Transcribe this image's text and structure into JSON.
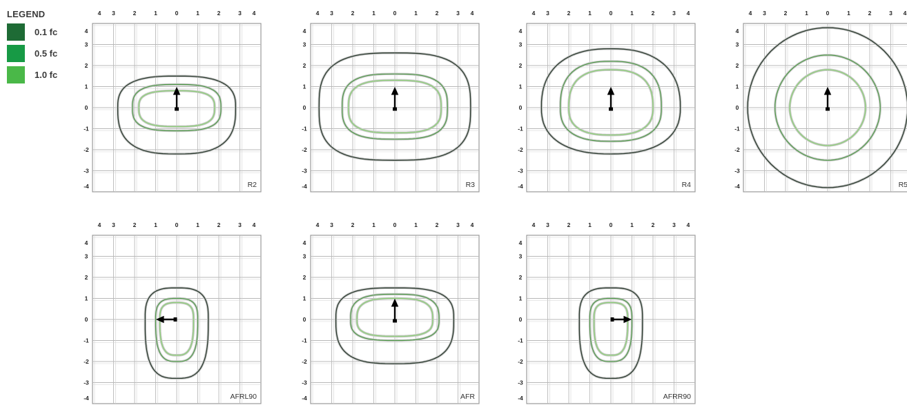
{
  "legend": {
    "title": "LEGEND",
    "items": [
      {
        "label": "0.1 fc",
        "color": "#1e6b35"
      },
      {
        "label": "0.5 fc",
        "color": "#179a45"
      },
      {
        "label": "1.0 fc",
        "color": "#4ab848"
      }
    ]
  },
  "axis_ticks": {
    "x": [
      "4",
      "3",
      "2",
      "1",
      "0",
      "1",
      "2",
      "3",
      "4"
    ],
    "y": [
      "4",
      "3",
      "2",
      "1",
      "0",
      "-1",
      "-2",
      "-3",
      "-4"
    ]
  },
  "contour_colors": [
    "#2a3a2e",
    "#4f9a48",
    "#8fd07a"
  ],
  "arrow_color": "#000000",
  "panels": [
    {
      "label": "R2",
      "arrow": "up",
      "contours": [
        {
          "level": "0.1 fc",
          "rx": [
            2.8,
            2.8,
            2.8,
            2.8
          ],
          "ry": [
            1.5,
            2.2,
            1.5,
            1.8
          ],
          "sq": 2.8
        },
        {
          "level": "0.5 fc",
          "rx": [
            2.1,
            2.1,
            2.1,
            2.1
          ],
          "ry": [
            1.1,
            1.1,
            1.1,
            1.3
          ],
          "sq": 3.0
        },
        {
          "level": "1.0 fc",
          "rx": [
            1.8,
            1.8,
            1.8,
            1.8
          ],
          "ry": [
            0.8,
            0.9,
            0.8,
            1.1
          ],
          "sq": 3.0
        }
      ]
    },
    {
      "label": "R3",
      "arrow": "up",
      "contours": [
        {
          "level": "0.1 fc",
          "rx": [
            3.6,
            3.6,
            3.6,
            3.6
          ],
          "ry": [
            2.6,
            2.5,
            2.6,
            2.5
          ],
          "sq": 3.0
        },
        {
          "level": "0.5 fc",
          "rx": [
            2.5,
            2.5,
            2.5,
            2.5
          ],
          "ry": [
            1.6,
            1.5,
            1.6,
            1.7
          ],
          "sq": 3.0
        },
        {
          "level": "1.0 fc",
          "rx": [
            2.2,
            2.2,
            2.2,
            2.2
          ],
          "ry": [
            1.3,
            1.2,
            1.3,
            1.4
          ],
          "sq": 3.0
        }
      ]
    },
    {
      "label": "R4",
      "arrow": "up",
      "contours": [
        {
          "level": "0.1 fc",
          "rx": [
            3.3,
            3.3,
            3.3,
            3.3
          ],
          "ry": [
            2.8,
            2.2,
            2.8,
            2.2
          ],
          "sq": 2.4
        },
        {
          "level": "0.5 fc",
          "rx": [
            2.4,
            2.4,
            2.4,
            2.4
          ],
          "ry": [
            2.2,
            1.6,
            2.2,
            1.4
          ],
          "sq": 2.6
        },
        {
          "level": "1.0 fc",
          "rx": [
            2.0,
            2.0,
            2.0,
            2.0
          ],
          "ry": [
            1.8,
            1.3,
            1.8,
            1.1
          ],
          "sq": 2.6
        }
      ]
    },
    {
      "label": "R5",
      "arrow": "up",
      "contours": [
        {
          "level": "0.1 fc",
          "rx": [
            3.8,
            3.8,
            3.8,
            3.8
          ],
          "ry": [
            3.8,
            3.8,
            3.8,
            3.8
          ],
          "sq": 2.0
        },
        {
          "level": "0.5 fc",
          "rx": [
            2.5,
            2.5,
            2.5,
            2.5
          ],
          "ry": [
            2.5,
            2.5,
            2.5,
            2.5
          ],
          "sq": 2.0
        },
        {
          "level": "1.0 fc",
          "rx": [
            1.8,
            1.8,
            1.8,
            1.8
          ],
          "ry": [
            1.8,
            1.8,
            1.8,
            1.8
          ],
          "sq": 2.0
        }
      ]
    },
    {
      "label": "AFRL90",
      "arrow": "left",
      "contours": [
        {
          "level": "0.1 fc",
          "rx": [
            1.5,
            2.8,
            1.5,
            2.8
          ],
          "ry": [
            1.5,
            2.8,
            1.5,
            2.8
          ],
          "sq": 3.0
        },
        {
          "level": "0.5 fc",
          "rx": [
            1.0,
            2.0,
            1.0,
            2.0
          ],
          "ry": [
            1.0,
            2.0,
            1.0,
            2.0
          ],
          "sq": 3.0
        },
        {
          "level": "1.0 fc",
          "rx": [
            0.8,
            1.7,
            0.8,
            1.7
          ],
          "ry": [
            0.8,
            1.7,
            0.8,
            1.7
          ],
          "sq": 3.0
        }
      ]
    },
    {
      "label": "AFR",
      "arrow": "up",
      "contours": [
        {
          "level": "0.1 fc",
          "rx": [
            2.8,
            2.8,
            2.8,
            2.8
          ],
          "ry": [
            1.5,
            2.1,
            1.5,
            1.8
          ],
          "sq": 3.0
        },
        {
          "level": "0.5 fc",
          "rx": [
            2.1,
            2.1,
            2.1,
            2.1
          ],
          "ry": [
            1.2,
            1.0,
            1.2,
            1.2
          ],
          "sq": 3.0
        },
        {
          "level": "1.0 fc",
          "rx": [
            1.8,
            1.8,
            1.8,
            1.8
          ],
          "ry": [
            1.0,
            0.8,
            1.0,
            1.0
          ],
          "sq": 3.0
        }
      ]
    },
    {
      "label": "AFRR90",
      "arrow": "right",
      "contours": [
        {
          "level": "0.1 fc",
          "rx": [
            1.5,
            2.8,
            1.5,
            2.8
          ],
          "ry": [
            1.5,
            2.8,
            1.5,
            2.8
          ],
          "sq": 3.0
        },
        {
          "level": "0.5 fc",
          "rx": [
            1.0,
            2.0,
            1.0,
            2.0
          ],
          "ry": [
            1.0,
            2.0,
            1.0,
            2.0
          ],
          "sq": 3.0
        },
        {
          "level": "1.0 fc",
          "rx": [
            0.8,
            1.7,
            0.8,
            1.7
          ],
          "ry": [
            0.8,
            1.7,
            0.8,
            1.7
          ],
          "sq": 3.0
        }
      ]
    }
  ]
}
